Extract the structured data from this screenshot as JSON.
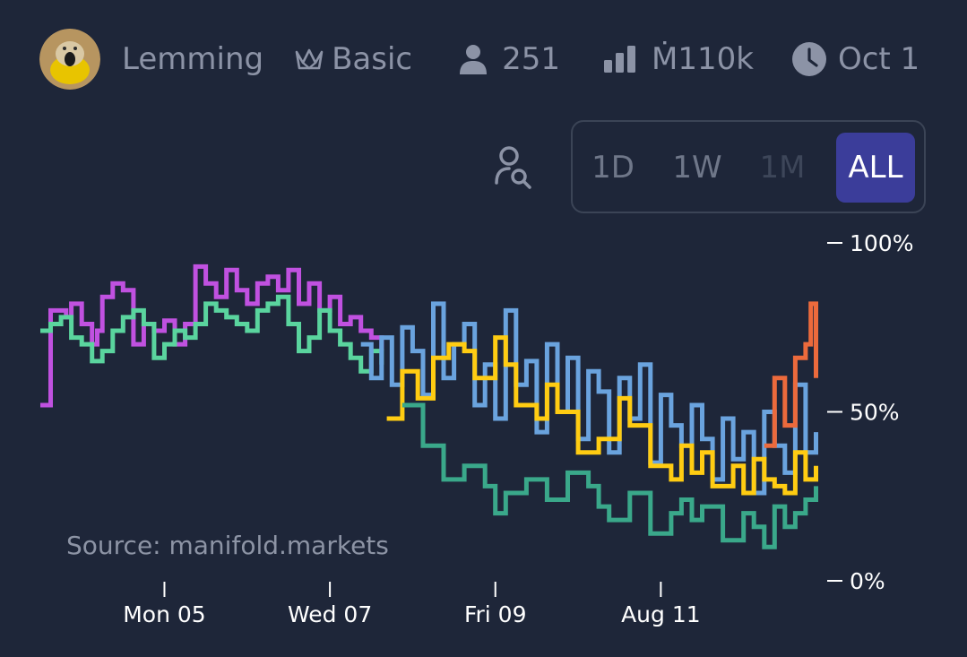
{
  "header": {
    "creator_name": "Lemming",
    "tier": "Basic",
    "traders": "251",
    "volume": "Ṁ110k",
    "close_date": "Oct 1",
    "icons": [
      "avatar",
      "crown-icon",
      "user-icon",
      "bar-chart-icon",
      "clock-icon"
    ]
  },
  "controls": {
    "ranges": [
      {
        "label": "1D",
        "state": "enabled"
      },
      {
        "label": "1W",
        "state": "enabled"
      },
      {
        "label": "1M",
        "state": "disabled"
      },
      {
        "label": "ALL",
        "state": "active"
      }
    ]
  },
  "colors": {
    "background": "#1e2639",
    "accent": "#3b3d9a",
    "series": [
      "#c051e0",
      "#5ad49e",
      "#6aa3de",
      "#ffcc12",
      "#3aa88a",
      "#ec6a3c"
    ]
  },
  "source": "Source: manifold.markets",
  "chart_data": {
    "type": "line",
    "step": true,
    "y_ticks": [
      "100%",
      "50%",
      "0%"
    ],
    "ylim": [
      0,
      100
    ],
    "x_ticks": [
      "Mon 05",
      "Wed 07",
      "Fri 09",
      "Aug 11"
    ],
    "xlim": [
      0,
      152
    ],
    "x_tick_positions": [
      24,
      56,
      88,
      120
    ],
    "series": [
      {
        "color": "#c051e0",
        "x": [
          0,
          2,
          5,
          6,
          8,
          10,
          11,
          12,
          14,
          16,
          18,
          20,
          22,
          24,
          26,
          28,
          30,
          32,
          34,
          36,
          38,
          40,
          42,
          44,
          46,
          48,
          50,
          52,
          54,
          56,
          58,
          60,
          62,
          64,
          66
        ],
        "y": [
          52,
          80,
          78,
          82,
          76,
          70,
          74,
          84,
          88,
          86,
          70,
          76,
          74,
          77,
          70,
          76,
          93,
          88,
          84,
          92,
          86,
          82,
          88,
          90,
          86,
          92,
          82,
          88,
          80,
          84,
          76,
          78,
          74,
          72,
          68
        ]
      },
      {
        "color": "#5ad49e",
        "x": [
          0,
          2,
          4,
          6,
          8,
          10,
          12,
          14,
          16,
          18,
          20,
          22,
          24,
          26,
          28,
          30,
          32,
          34,
          36,
          38,
          40,
          42,
          44,
          46,
          48,
          50,
          52,
          54,
          56,
          58,
          60,
          62,
          64,
          66
        ],
        "y": [
          74,
          76,
          78,
          72,
          70,
          65,
          68,
          74,
          78,
          80,
          76,
          66,
          70,
          74,
          72,
          76,
          82,
          80,
          78,
          76,
          74,
          80,
          82,
          84,
          76,
          68,
          72,
          80,
          74,
          70,
          66,
          62,
          68,
          64
        ]
      },
      {
        "color": "#6aa3de",
        "x": [
          62,
          64,
          66,
          68,
          70,
          72,
          74,
          76,
          78,
          80,
          82,
          84,
          86,
          88,
          90,
          92,
          94,
          96,
          98,
          100,
          102,
          104,
          106,
          108,
          110,
          112,
          114,
          116,
          118,
          120,
          122,
          124,
          126,
          128,
          130,
          132,
          134,
          136,
          138,
          140,
          142,
          144,
          146,
          148,
          150
        ],
        "y": [
          70,
          60,
          72,
          58,
          75,
          68,
          55,
          82,
          60,
          70,
          76,
          52,
          64,
          48,
          80,
          58,
          65,
          44,
          70,
          50,
          66,
          42,
          62,
          56,
          38,
          60,
          48,
          64,
          35,
          55,
          46,
          40,
          52,
          42,
          30,
          48,
          36,
          44,
          26,
          50,
          40,
          32,
          58,
          38,
          44
        ]
      },
      {
        "color": "#ffcc12",
        "x": [
          67,
          70,
          73,
          76,
          79,
          82,
          84,
          88,
          90,
          92,
          96,
          98,
          100,
          104,
          108,
          112,
          114,
          118,
          122,
          124,
          126,
          128,
          130,
          134,
          136,
          138,
          140,
          142,
          144,
          146,
          148,
          150
        ],
        "y": [
          48,
          62,
          54,
          66,
          70,
          68,
          60,
          72,
          64,
          52,
          48,
          58,
          50,
          38,
          42,
          54,
          46,
          34,
          30,
          40,
          32,
          38,
          28,
          34,
          26,
          36,
          30,
          28,
          26,
          38,
          30,
          34
        ]
      },
      {
        "color": "#3aa88a",
        "x": [
          70,
          74,
          78,
          82,
          86,
          88,
          90,
          94,
          98,
          102,
          106,
          108,
          110,
          114,
          118,
          122,
          124,
          126,
          128,
          132,
          136,
          138,
          140,
          142,
          144,
          146,
          148,
          150
        ],
        "y": [
          52,
          40,
          30,
          34,
          28,
          20,
          26,
          30,
          24,
          32,
          28,
          22,
          18,
          26,
          14,
          20,
          24,
          18,
          22,
          12,
          20,
          16,
          10,
          22,
          16,
          20,
          24,
          28
        ]
      },
      {
        "color": "#ec6a3c",
        "x": [
          140,
          142,
          144,
          146,
          148,
          149,
          150
        ],
        "y": [
          40,
          60,
          46,
          66,
          70,
          82,
          60
        ]
      }
    ]
  }
}
